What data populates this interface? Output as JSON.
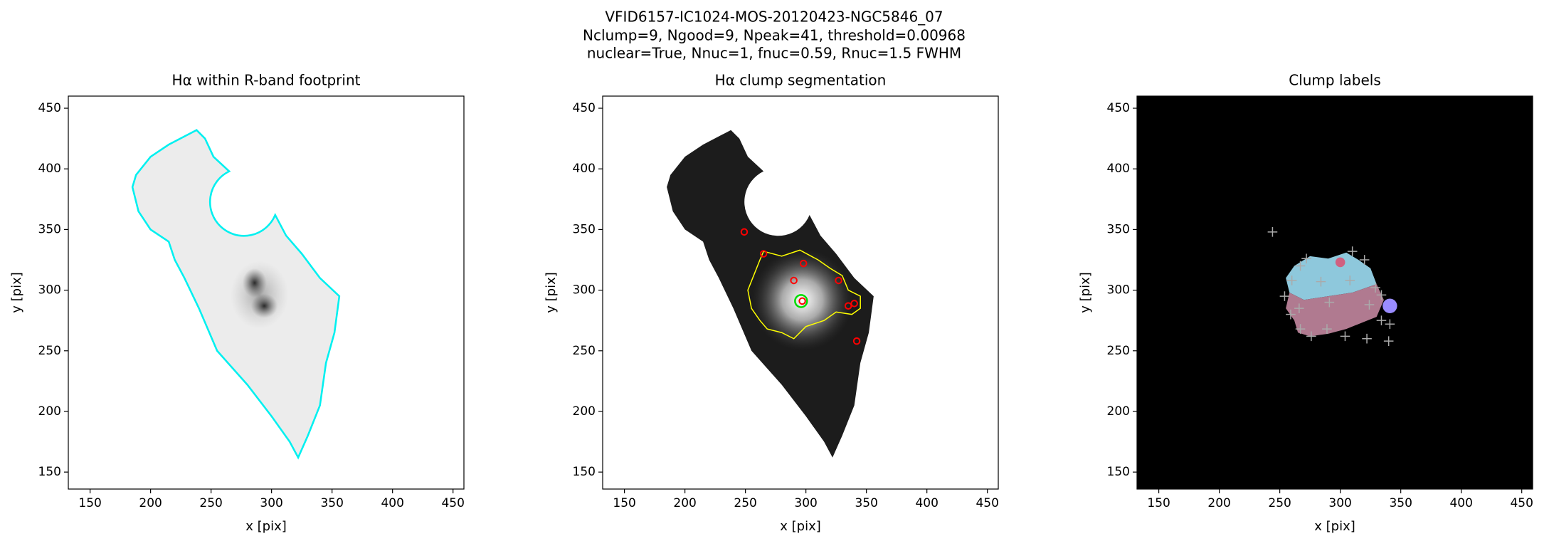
{
  "suptitle": [
    "VFID6157-IC1024-MOS-20120423-NGC5846_07",
    "Nclump=9, Ngood=9, Npeak=41, threshold=0.00968",
    "nuclear=True, Nnuc=1, fnuc=0.59, Rnuc=1.5 FWHM"
  ],
  "chart_data": [
    {
      "type": "image",
      "title": "Hα within R-band footprint",
      "xlabel": "x [pix]",
      "ylabel": "y [pix]",
      "xlim": [
        132,
        459
      ],
      "ylim": [
        136,
        460
      ],
      "xticks": [
        150,
        200,
        250,
        300,
        350,
        400,
        450
      ],
      "yticks": [
        150,
        200,
        250,
        300,
        350,
        400,
        450
      ]
    },
    {
      "type": "image",
      "title": "Hα clump segmentation",
      "xlabel": "x [pix]",
      "ylabel": "y [pix]",
      "xlim": [
        132,
        459
      ],
      "ylim": [
        136,
        460
      ],
      "xticks": [
        150,
        200,
        250,
        300,
        350,
        400,
        450
      ],
      "yticks": [
        150,
        200,
        250,
        300,
        350,
        400,
        450
      ]
    },
    {
      "type": "image",
      "title": "Clump labels",
      "xlabel": "x [pix]",
      "ylabel": "y [pix]",
      "xlim": [
        132,
        459
      ],
      "ylim": [
        136,
        460
      ],
      "xticks": [
        150,
        200,
        250,
        300,
        350,
        400,
        450
      ],
      "yticks": [
        150,
        200,
        250,
        300,
        350,
        400,
        450
      ]
    }
  ]
}
